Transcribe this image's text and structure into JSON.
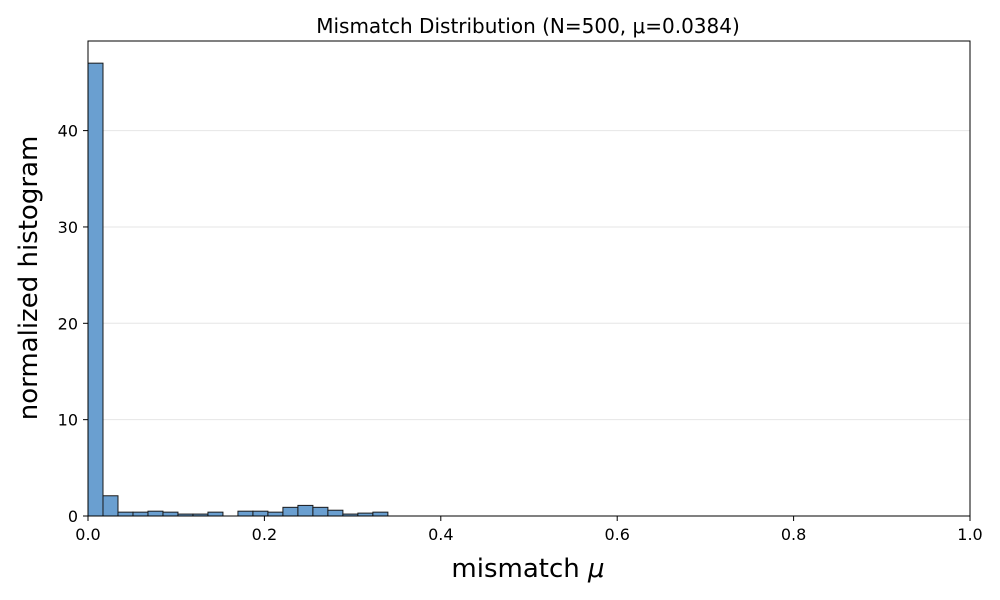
{
  "chart_data": {
    "type": "bar",
    "title": "Mismatch Distribution (N=500, μ=0.0384)",
    "xlabel": "mismatch",
    "xlabel_symbol": "μ",
    "ylabel": "normalized histogram",
    "xlim": [
      0.0,
      1.0
    ],
    "ylim": [
      0,
      49.3
    ],
    "x_ticks": [
      "0.0",
      "0.2",
      "0.4",
      "0.6",
      "0.8",
      "1.0"
    ],
    "x_tick_values": [
      0.0,
      0.2,
      0.4,
      0.6,
      0.8,
      1.0
    ],
    "y_ticks": [
      "0",
      "10",
      "20",
      "30",
      "40"
    ],
    "y_tick_values": [
      0,
      10,
      20,
      30,
      40
    ],
    "grid": "horizontal",
    "bar_color": "#6a9fd0",
    "bar_edge_color": "#1a1a1a",
    "bin_width": 0.017,
    "bins": [
      {
        "x0": 0.0,
        "value": 47.0
      },
      {
        "x0": 0.017,
        "value": 2.1
      },
      {
        "x0": 0.034,
        "value": 0.4
      },
      {
        "x0": 0.051,
        "value": 0.4
      },
      {
        "x0": 0.068,
        "value": 0.5
      },
      {
        "x0": 0.085,
        "value": 0.4
      },
      {
        "x0": 0.102,
        "value": 0.2
      },
      {
        "x0": 0.119,
        "value": 0.2
      },
      {
        "x0": 0.136,
        "value": 0.4
      },
      {
        "x0": 0.17,
        "value": 0.5
      },
      {
        "x0": 0.187,
        "value": 0.5
      },
      {
        "x0": 0.204,
        "value": 0.4
      },
      {
        "x0": 0.221,
        "value": 0.9
      },
      {
        "x0": 0.238,
        "value": 1.1
      },
      {
        "x0": 0.255,
        "value": 0.9
      },
      {
        "x0": 0.272,
        "value": 0.6
      },
      {
        "x0": 0.289,
        "value": 0.2
      },
      {
        "x0": 0.306,
        "value": 0.3
      },
      {
        "x0": 0.323,
        "value": 0.4
      }
    ]
  }
}
